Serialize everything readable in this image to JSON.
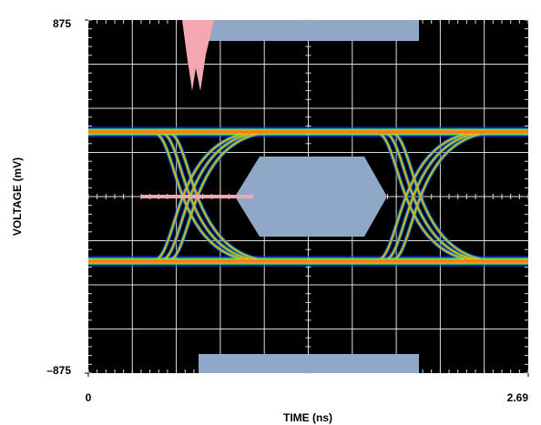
{
  "chart_data": {
    "type": "eye-diagram",
    "x_label": "TIME (ns)",
    "y_label": "VOLTAGE (mV)",
    "xlim": [
      0,
      2.69
    ],
    "xticks": [
      0,
      2.69
    ],
    "ylim": [
      -875,
      875
    ],
    "yticks": [
      875,
      {
        "value": -875,
        "label": "–875"
      }
    ],
    "grid": true
  }
}
